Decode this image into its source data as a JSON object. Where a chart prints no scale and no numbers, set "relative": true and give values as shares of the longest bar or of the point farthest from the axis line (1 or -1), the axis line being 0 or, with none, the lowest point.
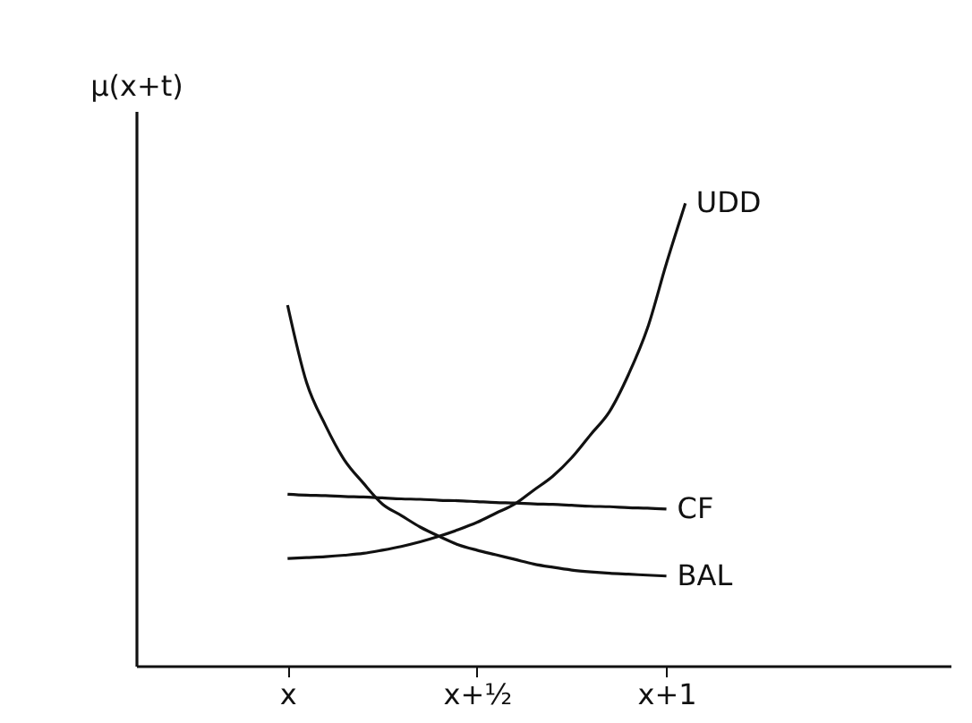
{
  "chart_data": {
    "type": "line",
    "ylabel": "μ(x+t)",
    "relative": true,
    "categories": [
      "x",
      null,
      null,
      null,
      null,
      null,
      null,
      null,
      null,
      null,
      "x+½",
      null,
      null,
      null,
      null,
      null,
      null,
      null,
      null,
      null,
      "x+1",
      null
    ],
    "grid": false,
    "legend": false,
    "line_style": "solid",
    "marker": "none",
    "series": [
      {
        "name": "UDD",
        "color": "#111111",
        "values": [
          0.232,
          0.234,
          0.236,
          0.239,
          0.243,
          0.25,
          0.258,
          0.268,
          0.28,
          0.294,
          0.31,
          0.33,
          0.35,
          0.38,
          0.41,
          0.45,
          0.5,
          0.55,
          0.63,
          0.73,
          0.87,
          1.0
        ]
      },
      {
        "name": "CF",
        "color": "#111111",
        "values": [
          0.371,
          0.369,
          0.368,
          0.366,
          0.365,
          0.363,
          0.361,
          0.36,
          0.358,
          0.357,
          0.355,
          0.353,
          0.352,
          0.35,
          0.349,
          0.347,
          0.345,
          0.344,
          0.342,
          0.341,
          0.339,
          null
        ]
      },
      {
        "name": "BAL",
        "color": "#111111",
        "values": [
          0.78,
          0.613,
          0.52,
          0.445,
          0.395,
          0.35,
          0.325,
          0.3,
          0.28,
          0.262,
          0.25,
          0.24,
          0.23,
          0.22,
          0.213,
          0.207,
          0.203,
          0.2,
          0.198,
          0.196,
          0.194,
          null
        ]
      }
    ]
  }
}
